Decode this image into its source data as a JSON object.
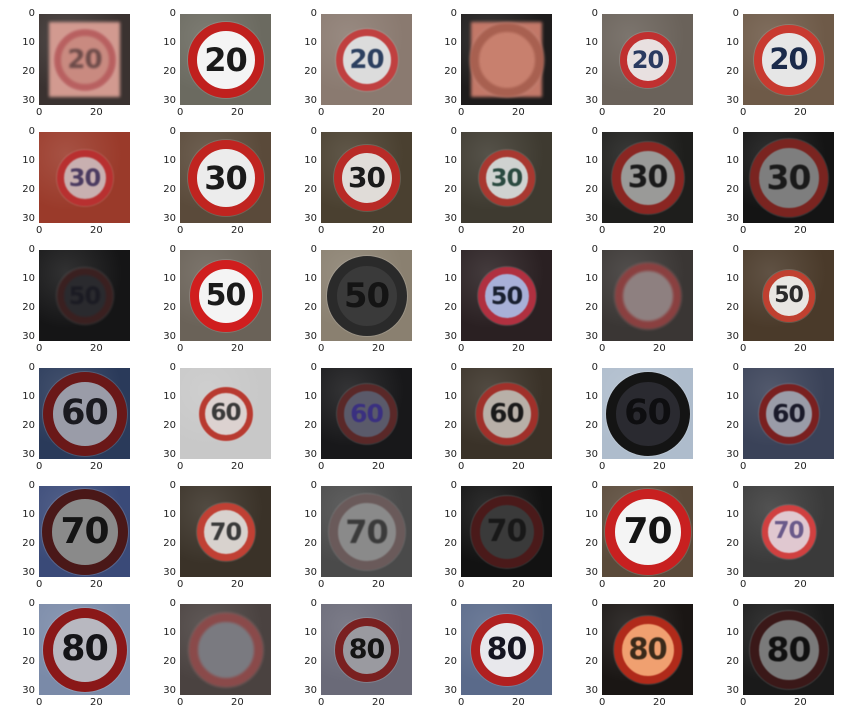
{
  "figure": {
    "y_tick_labels": [
      "0",
      "10",
      "20",
      "30"
    ],
    "x_tick_labels": [
      "0",
      "20"
    ],
    "rows": [
      {
        "images": [
          {
            "sign_text": "20",
            "bg": "#3a3230",
            "face": "#c98a80",
            "ring": "#b86060",
            "text": "#6b4a48",
            "size": 62,
            "blur": 1.4,
            "plate": "#d29a90"
          },
          {
            "sign_text": "20",
            "bg": "#6b6a60",
            "face": "#f4f4f4",
            "ring": "#c0201e",
            "text": "#1a1a1a",
            "size": 76,
            "blur": 0
          },
          {
            "sign_text": "20",
            "bg": "#8a7a70",
            "face": "#dcdcdc",
            "ring": "#c04040",
            "text": "#2c4060",
            "size": 62,
            "blur": 0.4
          },
          {
            "sign_text": "",
            "bg": "#1e1c1c",
            "face": "#c8806e",
            "ring": "#a86050",
            "text": "#5a3a30",
            "size": 74,
            "blur": 1.4,
            "plate": "#c27868"
          },
          {
            "sign_text": "20",
            "bg": "#6a625a",
            "face": "#e8e0e0",
            "ring": "#c03030",
            "text": "#2a3a60",
            "size": 56,
            "blur": 0.3
          },
          {
            "sign_text": "20",
            "bg": "#6e5a48",
            "face": "#e6e6e6",
            "ring": "#c83a30",
            "text": "#1a2a4a",
            "size": 70,
            "blur": 0.2
          }
        ]
      },
      {
        "images": [
          {
            "sign_text": "30",
            "bg": "#9a3a2a",
            "face": "#c8b0b0",
            "ring": "#b83030",
            "text": "#4a3a60",
            "size": 56,
            "blur": 0.8
          },
          {
            "sign_text": "30",
            "bg": "#5a4a3a",
            "face": "#ececec",
            "ring": "#c02420",
            "text": "#1a1a1a",
            "size": 76,
            "blur": 0
          },
          {
            "sign_text": "30",
            "bg": "#4a4030",
            "face": "#e0dcd8",
            "ring": "#b82a26",
            "text": "#1a1a1a",
            "size": 66,
            "blur": 0.2
          },
          {
            "sign_text": "30",
            "bg": "#3e3a30",
            "face": "#cfd2d0",
            "ring": "#a83830",
            "text": "#2a4a40",
            "size": 56,
            "blur": 0.6
          },
          {
            "sign_text": "30",
            "bg": "#1e1e1c",
            "face": "#9a9a98",
            "ring": "#8a2622",
            "text": "#1a1a1a",
            "size": 72,
            "blur": 0.5
          },
          {
            "sign_text": "30",
            "bg": "#141414",
            "face": "#7e7e7e",
            "ring": "#7a2420",
            "text": "#1a1a1a",
            "size": 78,
            "blur": 0.6
          }
        ]
      },
      {
        "images": [
          {
            "sign_text": "50",
            "bg": "#151516",
            "face": "#2a2a2e",
            "ring": "#3a2020",
            "text": "#1a1a22",
            "size": 56,
            "blur": 1.0
          },
          {
            "sign_text": "50",
            "bg": "#6a6258",
            "face": "#f4f4f4",
            "ring": "#d01e1e",
            "text": "#1a1a1a",
            "size": 72,
            "blur": 0
          },
          {
            "sign_text": "50",
            "bg": "#8a8070",
            "face": "#3a3a3a",
            "ring": "#2a2a2a",
            "text": "#141414",
            "size": 80,
            "blur": 0.3
          },
          {
            "sign_text": "50",
            "bg": "#2a2022",
            "face": "#a8b0d8",
            "ring": "#b03040",
            "text": "#1a2030",
            "size": 58,
            "blur": 0.4
          },
          {
            "sign_text": "",
            "bg": "#3a3634",
            "face": "#8e8080",
            "ring": "#8a4040",
            "text": "#3a2e2e",
            "size": 66,
            "blur": 1.4
          },
          {
            "sign_text": "50",
            "bg": "#4a3a2a",
            "face": "#e8e6e2",
            "ring": "#c04030",
            "text": "#2a2a2a",
            "size": 52,
            "blur": 0.3
          }
        ]
      },
      {
        "images": [
          {
            "sign_text": "60",
            "bg": "#2a3a5a",
            "face": "#9a9ca8",
            "ring": "#6a1818",
            "text": "#1a1a20",
            "size": 84,
            "blur": 0.3
          },
          {
            "sign_text": "60",
            "bg": "#c8c8c8",
            "face": "#dcd2d0",
            "ring": "#b83a30",
            "text": "#3a3a3a",
            "size": 54,
            "blur": 0.6
          },
          {
            "sign_text": "60",
            "bg": "#18181a",
            "face": "#5a5a6a",
            "ring": "#5a2828",
            "text": "#3a3080",
            "size": 60,
            "blur": 0.6
          },
          {
            "sign_text": "60",
            "bg": "#3a3228",
            "face": "#b8b0a8",
            "ring": "#a0302a",
            "text": "#1a1a1a",
            "size": 62,
            "blur": 0.4
          },
          {
            "sign_text": "60",
            "bg": "#aebccc",
            "face": "#2a2a30",
            "ring": "#141414",
            "text": "#0e0e10",
            "size": 84,
            "blur": 0.2
          },
          {
            "sign_text": "60",
            "bg": "#3a4258",
            "face": "#9a9ca8",
            "ring": "#7a2020",
            "text": "#1a1a2a",
            "size": 60,
            "blur": 0.5
          }
        ]
      },
      {
        "images": [
          {
            "sign_text": "70",
            "bg": "#3a4a78",
            "face": "#8a8a8a",
            "ring": "#4a1818",
            "text": "#141414",
            "size": 86,
            "blur": 0.3
          },
          {
            "sign_text": "70",
            "bg": "#3a3228",
            "face": "#d8d2ce",
            "ring": "#c04034",
            "text": "#3a3a3a",
            "size": 58,
            "blur": 0.5
          },
          {
            "sign_text": "70",
            "bg": "#4a4a4a",
            "face": "#8a8a8a",
            "ring": "#6a5a5a",
            "text": "#3a3a3a",
            "size": 76,
            "blur": 0.7
          },
          {
            "sign_text": "70",
            "bg": "#121212",
            "face": "#3a3a3a",
            "ring": "#4a1a1a",
            "text": "#181818",
            "size": 72,
            "blur": 0.6
          },
          {
            "sign_text": "70",
            "bg": "#5a4a3a",
            "face": "#f4f4f4",
            "ring": "#c82020",
            "text": "#141414",
            "size": 86,
            "blur": 0
          },
          {
            "sign_text": "70",
            "bg": "#3a3a3a",
            "face": "#e0c8d0",
            "ring": "#d04040",
            "text": "#6a5a8a",
            "size": 54,
            "blur": 0.5
          }
        ]
      },
      {
        "images": [
          {
            "sign_text": "80",
            "bg": "#7a8aa8",
            "face": "#b8b8c0",
            "ring": "#8a1818",
            "text": "#141418",
            "size": 84,
            "blur": 0.3
          },
          {
            "sign_text": "",
            "bg": "#4a4240",
            "face": "#7a7a80",
            "ring": "#8a4a4a",
            "text": "#3a3a3a",
            "size": 74,
            "blur": 1.4
          },
          {
            "sign_text": "80",
            "bg": "#6a6a78",
            "face": "#9a9aa0",
            "ring": "#7a2020",
            "text": "#141414",
            "size": 64,
            "blur": 0.3
          },
          {
            "sign_text": "80",
            "bg": "#5a6a8a",
            "face": "#e8e8ec",
            "ring": "#b02020",
            "text": "#141420",
            "size": 72,
            "blur": 0
          },
          {
            "sign_text": "80",
            "bg": "#1a1614",
            "face": "#f0a070",
            "ring": "#b02a1a",
            "text": "#3a2a1a",
            "size": 68,
            "blur": 0.4
          },
          {
            "sign_text": "80",
            "bg": "#1a1a1a",
            "face": "#7a7a7a",
            "ring": "#3a1818",
            "text": "#101010",
            "size": 78,
            "blur": 0.5
          }
        ]
      }
    ]
  }
}
